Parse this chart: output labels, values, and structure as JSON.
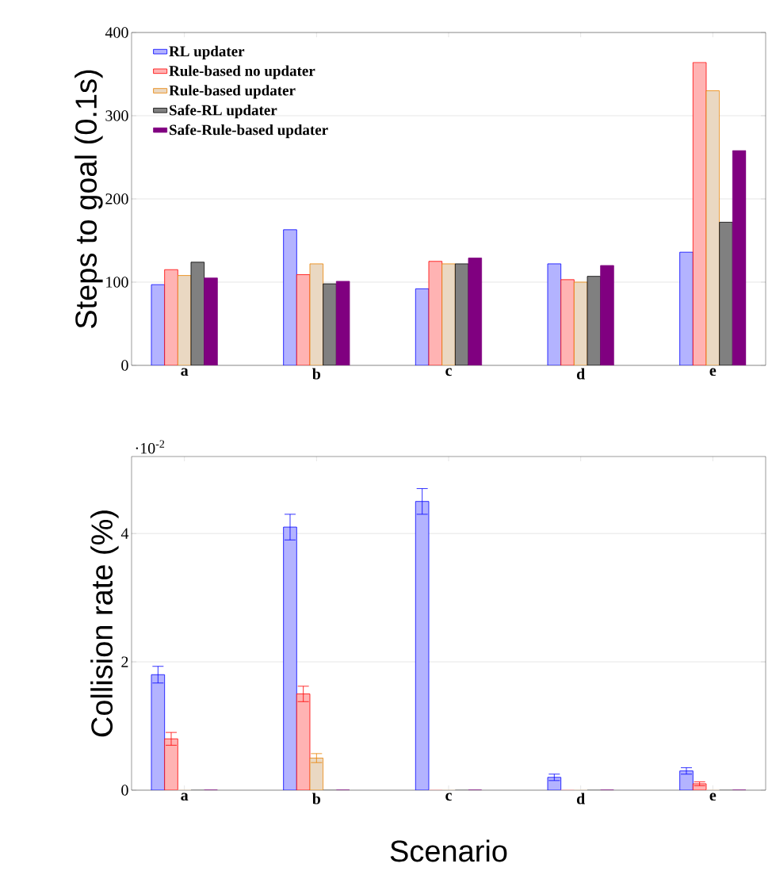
{
  "chart_data": [
    {
      "type": "bar",
      "ylabel": "Steps to goal (0.1s)",
      "categories": [
        "a",
        "b",
        "c",
        "d",
        "e"
      ],
      "series": [
        {
          "name": "RL updater",
          "color": "#b3b3ff",
          "values": [
            97,
            163,
            92,
            122,
            136
          ]
        },
        {
          "name": "Rule-based no updater",
          "color": "#ffb3b3",
          "values": [
            115,
            109,
            125,
            103,
            364
          ]
        },
        {
          "name": "Rule-based updater",
          "color": "#ead8c2",
          "values": [
            108,
            122,
            122,
            100,
            330
          ]
        },
        {
          "name": "Safe-RL updater",
          "color": "#808080",
          "values": [
            124,
            98,
            122,
            107,
            172
          ]
        },
        {
          "name": "Safe-Rule-based updater",
          "color": "#800080",
          "values": [
            105,
            101,
            129,
            120,
            258
          ]
        }
      ],
      "ylim": [
        0,
        400
      ],
      "yticks": [
        0,
        100,
        200,
        300,
        400
      ],
      "grid": "y",
      "legend": "top left"
    },
    {
      "type": "bar",
      "ylabel": "Collision rate (%)",
      "xlabel": "Scenario",
      "categories": [
        "a",
        "b",
        "c",
        "d",
        "e"
      ],
      "annotations": [
        "·10$^{-2}$"
      ],
      "series": [
        {
          "color": "#b3b3ff",
          "values": [
            1.8,
            4.1,
            4.5,
            0.2,
            0.3
          ],
          "errors": [
            0.13,
            0.2,
            0.2,
            0.05,
            0.05
          ]
        },
        {
          "color": "#ffb3b3",
          "values": [
            0.8,
            1.5,
            0,
            0,
            0.1
          ],
          "errors": [
            0.1,
            0.12,
            null,
            null,
            0.03
          ]
        },
        {
          "color": "#ead8c2",
          "values": [
            0,
            0.5,
            0,
            0,
            0
          ],
          "errors": [
            null,
            0.07,
            null,
            null,
            null
          ]
        },
        {
          "color": "#808080",
          "values": [
            0,
            0,
            0,
            0,
            0
          ]
        },
        {
          "color": "#800080",
          "values": [
            0,
            0,
            0,
            0,
            0
          ]
        }
      ],
      "ylim": [
        0,
        5.2
      ],
      "yticks": [
        0,
        2,
        4
      ],
      "grid": "y",
      "legend": false
    }
  ]
}
